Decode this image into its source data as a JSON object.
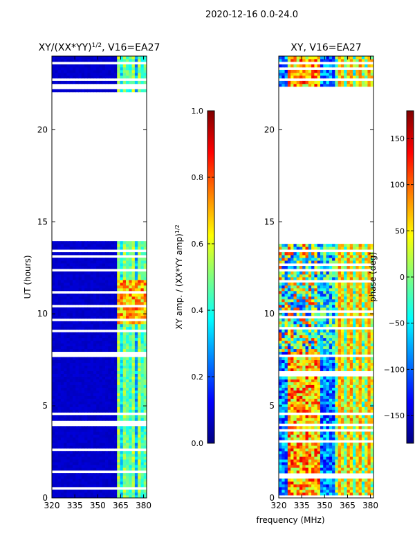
{
  "suptitle": "2020-12-16 0.0-24.0",
  "chart_data": [
    {
      "type": "heatmap",
      "title_main": "XY/(XX*YY)",
      "title_exp": "1/2",
      "title_tail": ", V16=EA27",
      "ylabel": "UT (hours)",
      "xlabel": "",
      "xlim": [
        320,
        382
      ],
      "ylim": [
        0,
        24
      ],
      "xticks": [
        320,
        335,
        350,
        365,
        380
      ],
      "yticks": [
        0,
        5,
        10,
        15,
        20
      ],
      "xtick_labels": [
        "320",
        "335",
        "350",
        "365",
        "380"
      ],
      "ytick_labels": [
        "0",
        "5",
        "10",
        "15",
        "20"
      ],
      "data_gap_hours": [
        14.0,
        22.0
      ],
      "colorbar": {
        "label_main": "XY amp. / (XX*YY amp)",
        "label_exp": "1/2",
        "range": [
          0.0,
          1.0
        ],
        "ticks": [
          0.0,
          0.2,
          0.4,
          0.6,
          0.8,
          1.0
        ],
        "tick_labels": [
          "0.0",
          "0.2",
          "0.4",
          "0.6",
          "0.8",
          "1.0"
        ]
      }
    },
    {
      "type": "heatmap",
      "title": "XY, V16=EA27",
      "xlabel": "frequency (MHz)",
      "ylabel": "",
      "xlim": [
        320,
        382
      ],
      "ylim": [
        0,
        24
      ],
      "xticks": [
        320,
        335,
        350,
        365,
        380
      ],
      "yticks": [
        0,
        5,
        10,
        15,
        20
      ],
      "xtick_labels": [
        "320",
        "335",
        "350",
        "365",
        "380"
      ],
      "ytick_labels": [
        "0",
        "5",
        "10",
        "15",
        "20"
      ],
      "data_gap_hours": [
        14.0,
        22.0
      ],
      "colorbar": {
        "label": "phase (deg)",
        "range": [
          -180,
          180
        ],
        "ticks": [
          -150,
          -100,
          -50,
          0,
          50,
          100,
          150
        ],
        "tick_labels": [
          "−150",
          "−100",
          "−50",
          "0",
          "50",
          "100",
          "150"
        ]
      }
    }
  ]
}
